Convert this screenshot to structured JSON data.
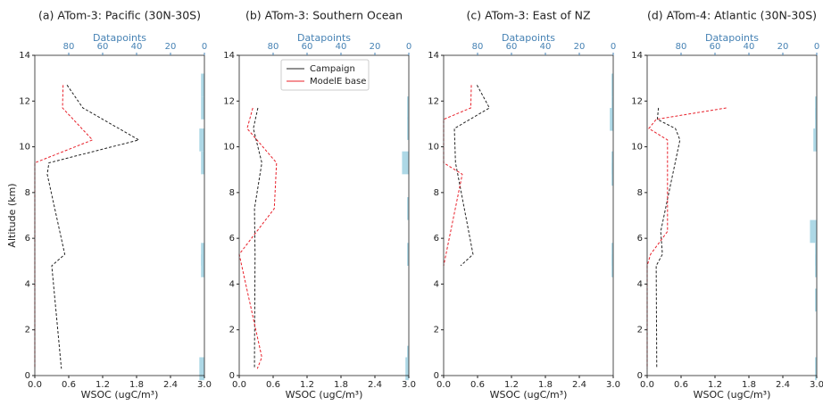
{
  "chart_data": [
    {
      "type": "line",
      "title": "(a) ATom-3: Pacific (30N-30S)",
      "xlabel": "WSOC (ugC/m³)",
      "ylabel": "Altitude (km)",
      "x2label": "Datapoints",
      "xlim": [
        0,
        3
      ],
      "xticks": [
        {
          "value": 0,
          "label": "0.0"
        },
        {
          "value": 0.6,
          "label": "0.6"
        },
        {
          "value": 1.2,
          "label": "1.2"
        },
        {
          "value": 1.8,
          "label": "1.8"
        },
        {
          "value": 2.4,
          "label": "2.4"
        },
        {
          "value": 3,
          "label": "3.0"
        }
      ],
      "ylim": [
        0,
        14
      ],
      "yticks": [
        0,
        2,
        4,
        6,
        8,
        10,
        12,
        14
      ],
      "x2lim": [
        100,
        0
      ],
      "x2ticks": [
        80,
        60,
        40,
        20,
        0
      ],
      "series": [
        {
          "name": "Campaign",
          "color": "#222222",
          "y": [
            12.7,
            11.7,
            10.3,
            9.3,
            8.8,
            5.3,
            4.8,
            0.3
          ],
          "values": [
            0.57,
            0.85,
            1.84,
            0.25,
            0.22,
            0.53,
            0.3,
            0.47
          ]
        },
        {
          "name": "ModelE base",
          "color": "#e8202a",
          "y": [
            12.7,
            11.7,
            10.3,
            9.3,
            8.8,
            5.3,
            4.8,
            0.3
          ],
          "values": [
            0.5,
            0.49,
            1.02,
            0,
            0,
            0,
            0,
            0
          ]
        }
      ],
      "datapoints": {
        "color": "#add8e6",
        "y": [
          12.7,
          11.7,
          10.3,
          9.3,
          5.3,
          4.8,
          0.3
        ],
        "values": [
          2,
          2,
          3,
          2,
          2,
          2,
          3
        ]
      }
    },
    {
      "type": "line",
      "title": "(b) ATom-3: Southern Ocean",
      "xlabel": "WSOC (ugC/m³)",
      "x2label": "Datapoints",
      "legend": "upper center",
      "xlim": [
        0,
        3
      ],
      "xticks": [
        {
          "value": 0,
          "label": "0.0"
        },
        {
          "value": 0.6,
          "label": "0.6"
        },
        {
          "value": 1.2,
          "label": "1.2"
        },
        {
          "value": 1.8,
          "label": "1.8"
        },
        {
          "value": 2.4,
          "label": "2.4"
        },
        {
          "value": 3,
          "label": "3.0"
        }
      ],
      "ylim": [
        0,
        14
      ],
      "yticks": [
        0,
        2,
        4,
        6,
        8,
        10,
        12,
        14
      ],
      "x2lim": [
        100,
        0
      ],
      "x2ticks": [
        80,
        60,
        40,
        20,
        0
      ],
      "series": [
        {
          "name": "Campaign",
          "color": "#222222",
          "y": [
            11.7,
            10.8,
            9.3,
            7.3,
            5.3,
            0.8,
            0.3
          ],
          "values": [
            0.33,
            0.25,
            0.4,
            0.27,
            0.28,
            0.27,
            0.27
          ]
        },
        {
          "name": "ModelE base",
          "color": "#e8202a",
          "y": [
            11.7,
            10.8,
            9.3,
            7.3,
            5.3,
            0.8,
            0.3
          ],
          "values": [
            0.24,
            0.14,
            0.66,
            0.62,
            0,
            0.4,
            0.32
          ]
        }
      ],
      "datapoints": {
        "color": "#add8e6",
        "y": [
          11.7,
          10.8,
          9.3,
          7.3,
          5.3,
          0.8,
          0.3
        ],
        "values": [
          1,
          1,
          4,
          1,
          1,
          1,
          2
        ]
      }
    },
    {
      "type": "line",
      "title": "(c) ATom-3: East of NZ",
      "xlabel": "WSOC (ugC/m³)",
      "x2label": "Datapoints",
      "xlim": [
        0,
        3
      ],
      "xticks": [
        {
          "value": 0,
          "label": "0.0"
        },
        {
          "value": 0.6,
          "label": "0.6"
        },
        {
          "value": 1.2,
          "label": "1.2"
        },
        {
          "value": 1.8,
          "label": "1.8"
        },
        {
          "value": 2.4,
          "label": "2.4"
        },
        {
          "value": 3,
          "label": "3.0"
        }
      ],
      "ylim": [
        0,
        14
      ],
      "yticks": [
        0,
        2,
        4,
        6,
        8,
        10,
        12,
        14
      ],
      "x2lim": [
        100,
        0
      ],
      "x2ticks": [
        80,
        60,
        40,
        20,
        0
      ],
      "series": [
        {
          "name": "Campaign",
          "color": "#222222",
          "y": [
            12.7,
            11.7,
            10.8,
            9.3,
            8.8,
            5.3,
            4.8
          ],
          "values": [
            0.59,
            0.81,
            0.19,
            0.21,
            0.25,
            0.52,
            0.3
          ]
        },
        {
          "name": "ModelE base",
          "color": "#e8202a",
          "y": [
            12.7,
            11.7,
            11.2,
            9.3,
            8.8,
            4.8
          ],
          "values": [
            0.49,
            0.48,
            0,
            0,
            0.33,
            0
          ]
        }
      ],
      "datapoints": {
        "color": "#add8e6",
        "y": [
          12.7,
          11.7,
          11.2,
          9.3,
          8.8,
          5.3,
          4.8
        ],
        "values": [
          1,
          1,
          2,
          1,
          1,
          1,
          1
        ]
      }
    },
    {
      "type": "line",
      "title": "(d) ATom-4: Atlantic (30N-30S)",
      "xlabel": "WSOC (ugC/m³)",
      "x2label": "Datapoints",
      "xlim": [
        0,
        3
      ],
      "xticks": [
        {
          "value": 0,
          "label": "0.0"
        },
        {
          "value": 0.6,
          "label": "0.6"
        },
        {
          "value": 1.2,
          "label": "1.2"
        },
        {
          "value": 1.8,
          "label": "1.8"
        },
        {
          "value": 2.4,
          "label": "2.4"
        },
        {
          "value": 3,
          "label": "3.0"
        }
      ],
      "ylim": [
        0,
        14
      ],
      "yticks": [
        0,
        2,
        4,
        6,
        8,
        10,
        12,
        14
      ],
      "x2lim": [
        100,
        0
      ],
      "x2ticks": [
        80,
        60,
        40,
        20,
        0
      ],
      "series": [
        {
          "name": "Campaign",
          "color": "#222222",
          "y": [
            11.7,
            11.2,
            10.8,
            10.3,
            6.3,
            5.3,
            4.8,
            0.3
          ],
          "values": [
            0.2,
            0.18,
            0.5,
            0.58,
            0.24,
            0.27,
            0.16,
            0.17
          ]
        },
        {
          "name": "ModelE base",
          "color": "#e8202a",
          "y": [
            11.7,
            11.2,
            10.8,
            10.3,
            6.3,
            5.3,
            4.8,
            0.3
          ],
          "values": [
            1.4,
            0.16,
            0.03,
            0.36,
            0.36,
            0.06,
            0,
            0
          ]
        }
      ],
      "datapoints": {
        "color": "#add8e6",
        "y": [
          11.7,
          11.2,
          10.3,
          6.3,
          5.3,
          4.8,
          3.3,
          0.3
        ],
        "values": [
          1,
          1,
          2,
          4,
          1,
          1,
          1,
          1
        ]
      }
    }
  ]
}
